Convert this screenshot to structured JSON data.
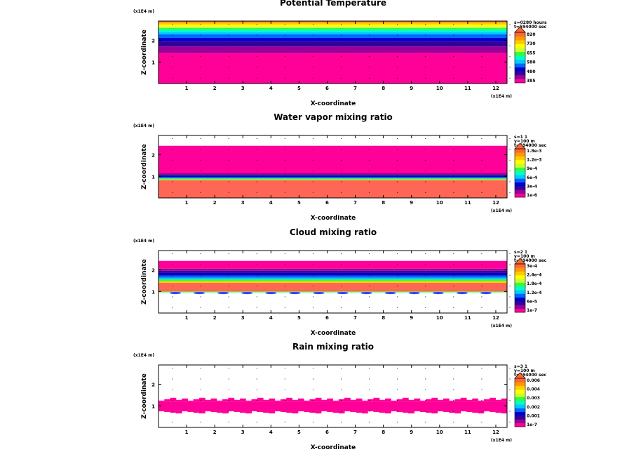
{
  "chart_data": [
    {
      "type": "heatmap",
      "title": "Potential Temperature",
      "xlabel": "X-coordinate",
      "ylabel": "Z-coordinate",
      "x_unit": "(x1E4 m)",
      "y_unit": "(x1E4 m)",
      "xlim": [
        0,
        12.4
      ],
      "ylim": [
        0,
        2.9
      ],
      "x_ticks": [
        "1",
        "2",
        "3",
        "4",
        "5",
        "6",
        "7",
        "8",
        "9",
        "10",
        "11",
        "12"
      ],
      "y_ticks": [
        "1",
        "2"
      ],
      "info": [
        "s=0280 hours",
        "t=594000 sec"
      ],
      "colorbar": {
        "labels": [
          "820",
          "730",
          "655",
          "580",
          "480",
          "385"
        ],
        "colors": [
          "#ff0099",
          "#990099",
          "#330099",
          "#0000cc",
          "#0066ff",
          "#00ccff",
          "#00ffcc",
          "#33ff33",
          "#ccff33",
          "#ffff00",
          "#ffcc00",
          "#ff9900",
          "#ff6633"
        ]
      },
      "layers": [
        {
          "z0": 0.0,
          "z1": 1.42,
          "color": "#ff0099"
        },
        {
          "z0": 1.42,
          "z1": 1.72,
          "color": "#990099"
        },
        {
          "z0": 1.72,
          "z1": 1.95,
          "color": "#330099"
        },
        {
          "z0": 1.95,
          "z1": 2.12,
          "color": "#0000cc"
        },
        {
          "z0": 2.12,
          "z1": 2.28,
          "color": "#0066ff"
        },
        {
          "z0": 2.28,
          "z1": 2.4,
          "color": "#00ccff"
        },
        {
          "z0": 2.4,
          "z1": 2.5,
          "color": "#00ffcc"
        },
        {
          "z0": 2.5,
          "z1": 2.58,
          "color": "#33ff33"
        },
        {
          "z0": 2.58,
          "z1": 2.66,
          "color": "#ccff33"
        },
        {
          "z0": 2.66,
          "z1": 2.74,
          "color": "#ffff00"
        },
        {
          "z0": 2.74,
          "z1": 2.82,
          "color": "#ffcc00"
        },
        {
          "z0": 2.82,
          "z1": 2.86,
          "color": "#ff9900"
        },
        {
          "z0": 2.86,
          "z1": 2.9,
          "color": "#ff6633"
        }
      ]
    },
    {
      "type": "heatmap",
      "title": "Water vapor mixing ratio",
      "xlabel": "X-coordinate",
      "ylabel": "Z-coordinate",
      "x_unit": "(x1E4 m)",
      "y_unit": "(x1E4 m)",
      "xlim": [
        0,
        12.4
      ],
      "ylim": [
        0,
        2.9
      ],
      "x_ticks": [
        "1",
        "2",
        "3",
        "4",
        "5",
        "6",
        "7",
        "8",
        "9",
        "10",
        "11",
        "12"
      ],
      "y_ticks": [
        "1",
        "2"
      ],
      "info": [
        "s=1 1",
        "y=100 m",
        "t=594000 sec"
      ],
      "colorbar": {
        "labels": [
          "1.8e-3",
          "1.2e-3",
          "9e-4",
          "6e-4",
          "3e-4",
          "1e-6"
        ],
        "colors": [
          "#ff0099",
          "#990099",
          "#330099",
          "#0000cc",
          "#0066ff",
          "#00ccff",
          "#00ffcc",
          "#33ff33",
          "#ccff33",
          "#ffff00",
          "#ffcc00",
          "#ff9900",
          "#ff6633"
        ]
      },
      "layers": [
        {
          "z0": 0.0,
          "z1": 0.82,
          "color": "#ff6655"
        },
        {
          "z0": 0.82,
          "z1": 0.86,
          "color": "#ffcc00"
        },
        {
          "z0": 0.86,
          "z1": 0.9,
          "color": "#33ff33"
        },
        {
          "z0": 0.9,
          "z1": 0.95,
          "color": "#00ccff"
        },
        {
          "z0": 0.95,
          "z1": 1.02,
          "color": "#0000cc"
        },
        {
          "z0": 1.02,
          "z1": 1.1,
          "color": "#330099"
        },
        {
          "z0": 1.1,
          "z1": 1.14,
          "color": "#990099"
        },
        {
          "z0": 1.14,
          "z1": 2.42,
          "color": "#ff0099"
        }
      ]
    },
    {
      "type": "heatmap",
      "title": "Cloud mixing ratio",
      "xlabel": "X-coordinate",
      "ylabel": "Z-coordinate",
      "x_unit": "(x1E4 m)",
      "y_unit": "(x1E4 m)",
      "xlim": [
        0,
        12.4
      ],
      "ylim": [
        0,
        2.9
      ],
      "x_ticks": [
        "1",
        "2",
        "3",
        "4",
        "5",
        "6",
        "7",
        "8",
        "9",
        "10",
        "11",
        "12"
      ],
      "y_ticks": [
        "1",
        "2"
      ],
      "info": [
        "s=2 1",
        "y=100 m",
        "t=594000 sec"
      ],
      "colorbar": {
        "labels": [
          "3e-4",
          "2.4e-4",
          "1.8e-4",
          "1.2e-4",
          "6e-5",
          "1e-7"
        ],
        "colors": [
          "#ff0099",
          "#990099",
          "#330099",
          "#0000cc",
          "#0066ff",
          "#00ccff",
          "#00ffcc",
          "#33ff33",
          "#ccff33",
          "#ffff00",
          "#ffcc00",
          "#ff9900",
          "#ff6633"
        ]
      },
      "layers": [
        {
          "z0": 0.96,
          "z1": 1.0,
          "color": "#33ff33"
        },
        {
          "z0": 1.0,
          "z1": 1.4,
          "color": "#ff6655"
        },
        {
          "z0": 1.4,
          "z1": 1.48,
          "color": "#ffcc00"
        },
        {
          "z0": 1.48,
          "z1": 1.56,
          "color": "#33ff33"
        },
        {
          "z0": 1.56,
          "z1": 1.64,
          "color": "#00ccff"
        },
        {
          "z0": 1.64,
          "z1": 1.74,
          "color": "#0066ff"
        },
        {
          "z0": 1.74,
          "z1": 1.86,
          "color": "#0000cc"
        },
        {
          "z0": 1.86,
          "z1": 1.96,
          "color": "#330099"
        },
        {
          "z0": 1.96,
          "z1": 2.06,
          "color": "#990099"
        },
        {
          "z0": 2.06,
          "z1": 2.42,
          "color": "#ff0099"
        }
      ]
    },
    {
      "type": "heatmap",
      "title": "Rain mixing ratio",
      "xlabel": "X-coordinate",
      "ylabel": "Z-coordinate",
      "x_unit": "(x1E4 m)",
      "y_unit": "(x1E4 m)",
      "xlim": [
        0,
        12.4
      ],
      "ylim": [
        0,
        2.9
      ],
      "x_ticks": [
        "1",
        "2",
        "3",
        "4",
        "5",
        "6",
        "7",
        "8",
        "9",
        "10",
        "11",
        "12"
      ],
      "y_ticks": [
        "1",
        "2"
      ],
      "info": [
        "s=3 1",
        "y=100 m",
        "t=594000 sec"
      ],
      "colorbar": {
        "labels": [
          "0.006",
          "0.004",
          "0.003",
          "0.002",
          "0.001",
          "1e-7"
        ],
        "colors": [
          "#ff0099",
          "#990099",
          "#330099",
          "#0000cc",
          "#0066ff",
          "#00ccff",
          "#00ffcc",
          "#33ff33",
          "#ccff33",
          "#ffff00",
          "#ffcc00",
          "#ff9900",
          "#ff6633"
        ]
      },
      "layers": [
        {
          "z0": 0.78,
          "z1": 1.18,
          "color": "#ff0099"
        }
      ]
    }
  ]
}
